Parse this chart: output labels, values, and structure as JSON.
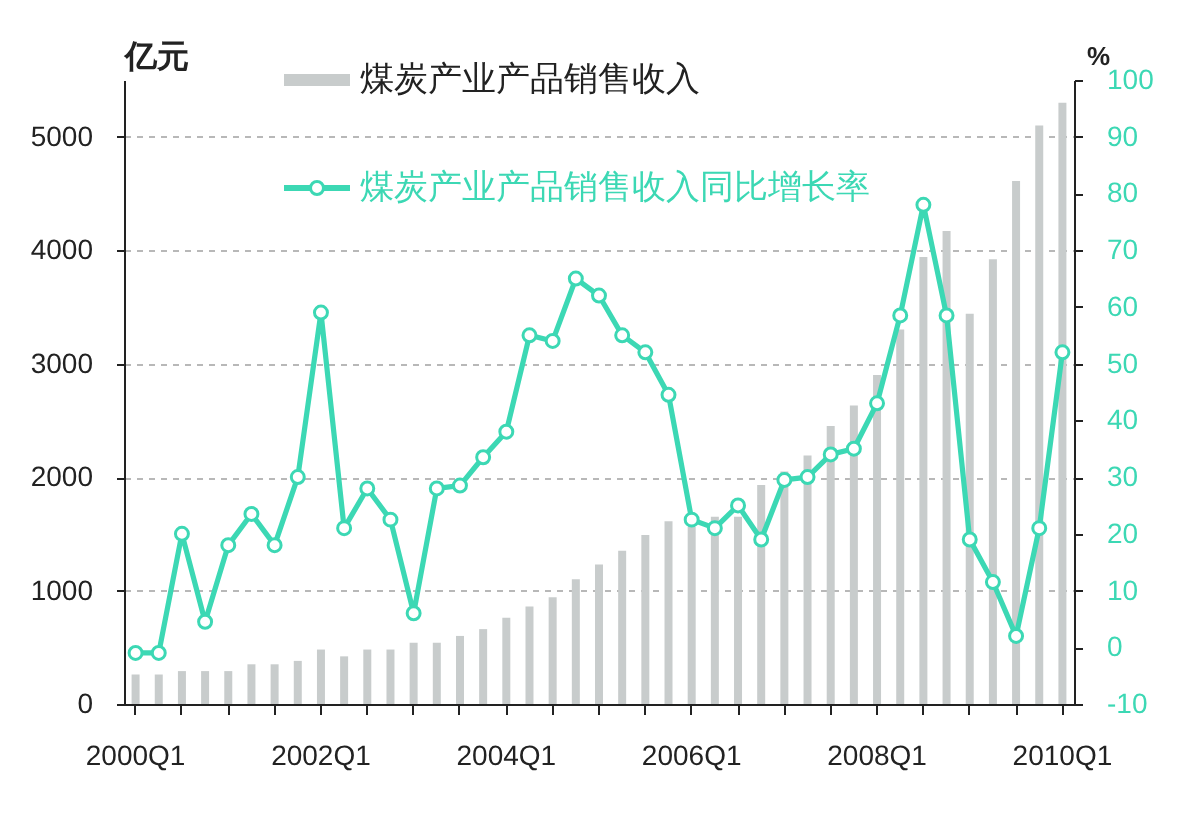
{
  "chart_data": {
    "type": "bar",
    "ylabel": "亿元",
    "y2label": "%",
    "categories": [
      "2000Q1",
      null,
      null,
      null,
      null,
      null,
      null,
      null,
      "2002Q1",
      null,
      null,
      null,
      null,
      null,
      null,
      null,
      "2004Q1",
      null,
      null,
      null,
      null,
      null,
      null,
      null,
      "2006Q1",
      null,
      null,
      null,
      null,
      null,
      null,
      null,
      "2008Q1",
      null,
      null,
      null,
      null,
      null,
      null,
      null,
      "2010Q1"
    ],
    "series": [
      {
        "name": "煤炭产业产品销售收入",
        "color": "#c8cccc",
        "values": [
          260,
          260,
          290,
          290,
          290,
          350,
          350,
          380,
          480,
          420,
          480,
          480,
          540,
          540,
          600,
          660,
          760,
          860,
          940,
          1100,
          1230,
          1350,
          1490,
          1610,
          1560,
          1650,
          1650,
          1930,
          2050,
          2190,
          2450,
          2630,
          2900,
          3300,
          3940,
          4170,
          3440,
          3920,
          4610,
          5100,
          5300
        ]
      },
      {
        "name": "煤炭产业产品销售收入同比增长率",
        "type": "line",
        "axis": "y2",
        "color": "#3cd8b4",
        "values": [
          -1,
          -1,
          20,
          4.5,
          18,
          23.5,
          18,
          30,
          59,
          21,
          28,
          22.5,
          6,
          28,
          28.5,
          33.5,
          38,
          55,
          54,
          65,
          62,
          55,
          52,
          44.5,
          22.5,
          21,
          25,
          19,
          29.5,
          30,
          34,
          35,
          43,
          58.5,
          78,
          58.5,
          19,
          11.5,
          2,
          21,
          52
        ]
      }
    ],
    "ylim": [
      0,
      5500
    ],
    "yticks": [
      0,
      1000,
      2000,
      3000,
      4000,
      5000
    ],
    "y2lim": [
      -10,
      100
    ],
    "y2ticks": [
      -10,
      0,
      10,
      20,
      30,
      40,
      50,
      60,
      70,
      80,
      90,
      100
    ],
    "grid": "y",
    "legend": "top",
    "marker": "circle",
    "line_style": "solid"
  }
}
